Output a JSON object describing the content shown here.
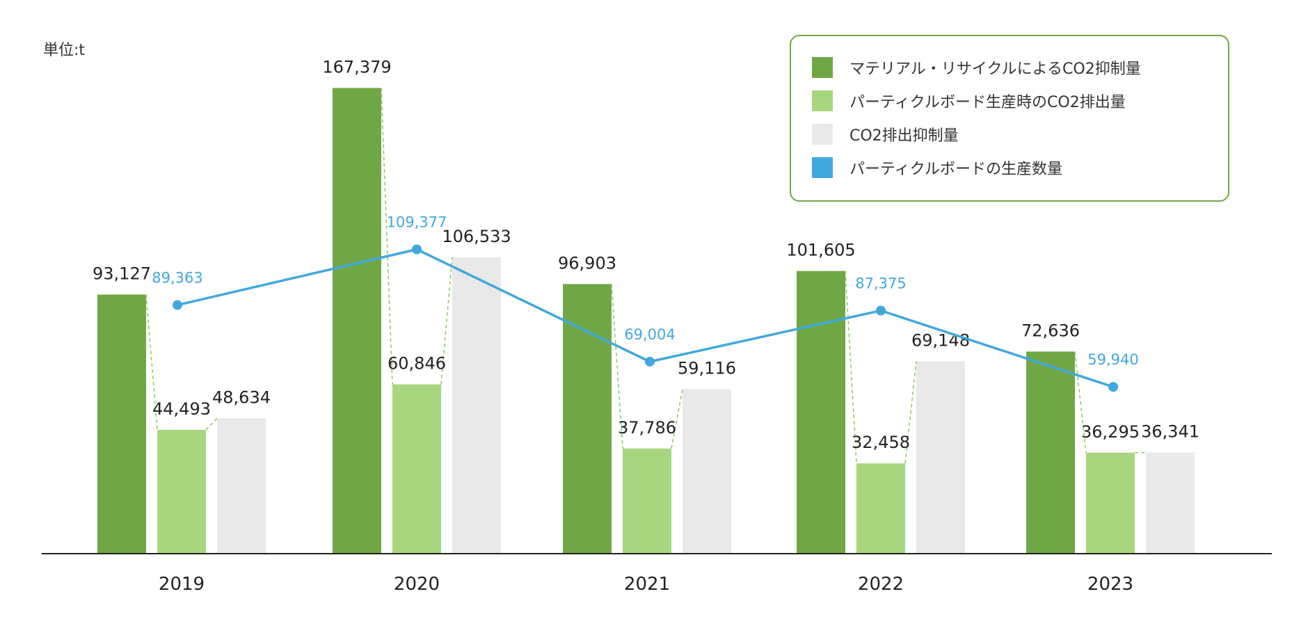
{
  "unit_label": "単位:t",
  "colors": {
    "material_recycle": "#70a745",
    "pb_emission": "#a8d67e",
    "emission_suppression": "#e9e9e9",
    "production": "#41a8dd",
    "axis": "#222222",
    "legend_border": "#70a745"
  },
  "legend": [
    {
      "label": "マテリアル・リサイクルによるCO2抑制量",
      "color": "#70a745"
    },
    {
      "label": "パーティクルボード生産時のCO2排出量",
      "color": "#a8d67e"
    },
    {
      "label": "CO2排出抑制量",
      "color": "#e9e9e9"
    },
    {
      "label": "パーティクルボードの生産数量",
      "color": "#41a8dd"
    }
  ],
  "chart_data": {
    "type": "bar",
    "title": "",
    "xlabel": "",
    "ylabel": "単位:t",
    "categories": [
      "2019",
      "2020",
      "2021",
      "2022",
      "2023"
    ],
    "ylim": [
      0,
      170000
    ],
    "grid": false,
    "legend_position": "top-right",
    "series": [
      {
        "name": "マテリアル・リサイクルによるCO2抑制量",
        "type": "bar",
        "values": [
          93127,
          167379,
          96903,
          101605,
          72636
        ],
        "labels": [
          "93,127",
          "167,379",
          "96,903",
          "101,605",
          "72,636"
        ]
      },
      {
        "name": "パーティクルボード生産時のCO2排出量",
        "type": "bar",
        "values": [
          44493,
          60846,
          37786,
          32458,
          36295
        ],
        "labels": [
          "44,493",
          "60,846",
          "37,786",
          "32,458",
          "36,295"
        ]
      },
      {
        "name": "CO2排出抑制量",
        "type": "bar",
        "values": [
          48634,
          106533,
          59116,
          69148,
          36341
        ],
        "labels": [
          "48,634",
          "106,533",
          "59,116",
          "69,148",
          "36,341"
        ]
      },
      {
        "name": "パーティクルボードの生産数量",
        "type": "line",
        "values": [
          89363,
          109377,
          69004,
          87375,
          59940
        ],
        "labels": [
          "89,363",
          "109,377",
          "69,004",
          "87,375",
          "59,940"
        ]
      }
    ]
  }
}
